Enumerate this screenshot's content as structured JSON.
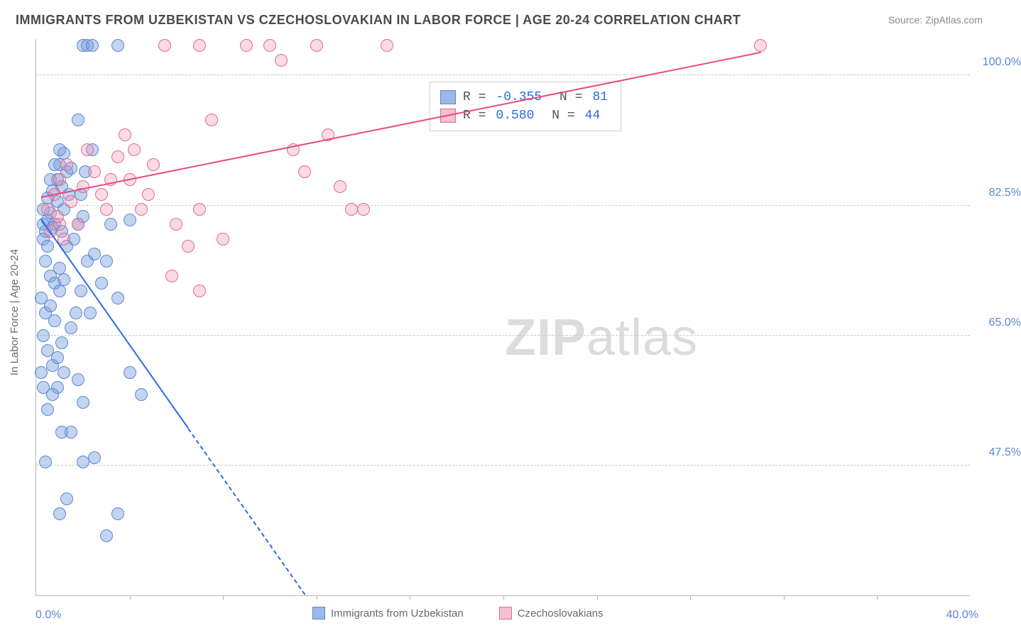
{
  "title": "IMMIGRANTS FROM UZBEKISTAN VS CZECHOSLOVAKIAN IN LABOR FORCE | AGE 20-24 CORRELATION CHART",
  "source": "Source: ZipAtlas.com",
  "y_axis_title": "In Labor Force | Age 20-24",
  "x_axis": {
    "min": 0.0,
    "max": 40.0,
    "label_min": "0.0%",
    "label_max": "40.0%",
    "tick_positions": [
      4,
      8,
      12,
      16,
      20,
      24,
      28,
      32,
      36
    ]
  },
  "y_axis": {
    "min": 30.0,
    "max": 105.0,
    "gridlines": [
      {
        "value": 100.0,
        "label": "100.0%"
      },
      {
        "value": 82.5,
        "label": "82.5%"
      },
      {
        "value": 65.0,
        "label": "65.0%"
      },
      {
        "value": 47.5,
        "label": "47.5%"
      }
    ]
  },
  "series": [
    {
      "name": "Immigrants from Uzbekistan",
      "swatch_fill": "#9cb8e8",
      "swatch_border": "#5b86d6",
      "point_fill": "rgba(120,160,220,0.45)",
      "point_border": "#5b86d6",
      "point_radius": 9,
      "R": "-0.355",
      "N": "81",
      "trend": {
        "x1": 0.2,
        "y1": 80.5,
        "x2": 11.5,
        "y2": 30.0,
        "solid_until_x": 6.5,
        "color": "#2b6be4",
        "width": 2.5
      },
      "points": [
        {
          "x": 0.3,
          "y": 80
        },
        {
          "x": 0.5,
          "y": 80.5
        },
        {
          "x": 0.4,
          "y": 79
        },
        {
          "x": 0.6,
          "y": 81.5
        },
        {
          "x": 0.8,
          "y": 80
        },
        {
          "x": 0.3,
          "y": 78
        },
        {
          "x": 0.5,
          "y": 77
        },
        {
          "x": 0.7,
          "y": 79.5
        },
        {
          "x": 0.9,
          "y": 83
        },
        {
          "x": 1.1,
          "y": 85
        },
        {
          "x": 1.3,
          "y": 87
        },
        {
          "x": 1.0,
          "y": 88
        },
        {
          "x": 1.2,
          "y": 89.5
        },
        {
          "x": 1.5,
          "y": 87.5
        },
        {
          "x": 1.8,
          "y": 94
        },
        {
          "x": 2.0,
          "y": 104
        },
        {
          "x": 2.2,
          "y": 104
        },
        {
          "x": 2.4,
          "y": 104
        },
        {
          "x": 0.4,
          "y": 75
        },
        {
          "x": 0.6,
          "y": 73
        },
        {
          "x": 0.8,
          "y": 72
        },
        {
          "x": 1.0,
          "y": 74
        },
        {
          "x": 0.3,
          "y": 82
        },
        {
          "x": 0.5,
          "y": 83.5
        },
        {
          "x": 0.7,
          "y": 84.5
        },
        {
          "x": 0.9,
          "y": 86
        },
        {
          "x": 0.2,
          "y": 70
        },
        {
          "x": 0.4,
          "y": 68
        },
        {
          "x": 0.6,
          "y": 69
        },
        {
          "x": 0.8,
          "y": 67
        },
        {
          "x": 1.0,
          "y": 71
        },
        {
          "x": 1.2,
          "y": 72.5
        },
        {
          "x": 0.3,
          "y": 65
        },
        {
          "x": 0.5,
          "y": 63
        },
        {
          "x": 0.7,
          "y": 61
        },
        {
          "x": 0.9,
          "y": 58
        },
        {
          "x": 1.2,
          "y": 60
        },
        {
          "x": 1.1,
          "y": 52
        },
        {
          "x": 1.5,
          "y": 52
        },
        {
          "x": 1.8,
          "y": 59
        },
        {
          "x": 2.0,
          "y": 56
        },
        {
          "x": 2.2,
          "y": 75
        },
        {
          "x": 2.5,
          "y": 76
        },
        {
          "x": 3.0,
          "y": 75
        },
        {
          "x": 3.5,
          "y": 70
        },
        {
          "x": 4.0,
          "y": 60
        },
        {
          "x": 4.5,
          "y": 57
        },
        {
          "x": 2.3,
          "y": 68
        },
        {
          "x": 2.8,
          "y": 72
        },
        {
          "x": 3.2,
          "y": 80
        },
        {
          "x": 3.5,
          "y": 104
        },
        {
          "x": 4.0,
          "y": 80.5
        },
        {
          "x": 1.6,
          "y": 78
        },
        {
          "x": 1.9,
          "y": 84
        },
        {
          "x": 2.1,
          "y": 87
        },
        {
          "x": 2.4,
          "y": 90
        },
        {
          "x": 0.4,
          "y": 48
        },
        {
          "x": 2.0,
          "y": 48
        },
        {
          "x": 2.5,
          "y": 48.5
        },
        {
          "x": 3.5,
          "y": 41
        },
        {
          "x": 1.0,
          "y": 41
        },
        {
          "x": 1.3,
          "y": 43
        },
        {
          "x": 3.0,
          "y": 38
        },
        {
          "x": 1.5,
          "y": 66
        },
        {
          "x": 1.7,
          "y": 68
        },
        {
          "x": 1.9,
          "y": 71
        },
        {
          "x": 1.8,
          "y": 80
        },
        {
          "x": 2.0,
          "y": 81
        },
        {
          "x": 1.2,
          "y": 82
        },
        {
          "x": 1.4,
          "y": 84
        },
        {
          "x": 0.6,
          "y": 86
        },
        {
          "x": 0.8,
          "y": 88
        },
        {
          "x": 1.0,
          "y": 90
        },
        {
          "x": 1.1,
          "y": 79
        },
        {
          "x": 1.3,
          "y": 77
        },
        {
          "x": 0.5,
          "y": 55
        },
        {
          "x": 0.7,
          "y": 57
        },
        {
          "x": 0.9,
          "y": 62
        },
        {
          "x": 1.1,
          "y": 64
        },
        {
          "x": 0.2,
          "y": 60
        },
        {
          "x": 0.3,
          "y": 58
        }
      ]
    },
    {
      "name": "Czechoslovakians",
      "swatch_fill": "#f5c0cf",
      "swatch_border": "#e06a8e",
      "point_fill": "rgba(240,150,180,0.35)",
      "point_border": "#e06a8e",
      "point_radius": 9,
      "R": "0.580",
      "N": "44",
      "trend": {
        "x1": 0.2,
        "y1": 83.5,
        "x2": 31.0,
        "y2": 103.0,
        "solid_until_x": 31.0,
        "color": "#e84a7f",
        "width": 2.5
      },
      "points": [
        {
          "x": 0.5,
          "y": 82
        },
        {
          "x": 0.8,
          "y": 84
        },
        {
          "x": 1.0,
          "y": 86
        },
        {
          "x": 1.3,
          "y": 88
        },
        {
          "x": 1.5,
          "y": 83
        },
        {
          "x": 1.8,
          "y": 80
        },
        {
          "x": 2.0,
          "y": 85
        },
        {
          "x": 2.5,
          "y": 87
        },
        {
          "x": 3.0,
          "y": 82
        },
        {
          "x": 3.5,
          "y": 89
        },
        {
          "x": 4.0,
          "y": 86
        },
        {
          "x": 4.5,
          "y": 82
        },
        {
          "x": 5.0,
          "y": 88
        },
        {
          "x": 5.5,
          "y": 104
        },
        {
          "x": 6.0,
          "y": 80
        },
        {
          "x": 6.5,
          "y": 77
        },
        {
          "x": 7.0,
          "y": 104
        },
        {
          "x": 7.0,
          "y": 82
        },
        {
          "x": 7.5,
          "y": 94
        },
        {
          "x": 8.0,
          "y": 78
        },
        {
          "x": 7.0,
          "y": 71
        },
        {
          "x": 9.0,
          "y": 104
        },
        {
          "x": 10.0,
          "y": 104
        },
        {
          "x": 10.5,
          "y": 102
        },
        {
          "x": 11.0,
          "y": 90
        },
        {
          "x": 11.5,
          "y": 87
        },
        {
          "x": 12.0,
          "y": 104
        },
        {
          "x": 12.5,
          "y": 92
        },
        {
          "x": 13.0,
          "y": 85
        },
        {
          "x": 13.5,
          "y": 82
        },
        {
          "x": 14.0,
          "y": 82
        },
        {
          "x": 15.0,
          "y": 104
        },
        {
          "x": 5.8,
          "y": 73
        },
        {
          "x": 2.2,
          "y": 90
        },
        {
          "x": 3.8,
          "y": 92
        },
        {
          "x": 31.0,
          "y": 104
        },
        {
          "x": 1.0,
          "y": 80
        },
        {
          "x": 1.2,
          "y": 78
        },
        {
          "x": 0.6,
          "y": 79
        },
        {
          "x": 0.9,
          "y": 81
        },
        {
          "x": 2.8,
          "y": 84
        },
        {
          "x": 3.2,
          "y": 86
        },
        {
          "x": 4.2,
          "y": 90
        },
        {
          "x": 4.8,
          "y": 84
        }
      ]
    }
  ],
  "watermark": {
    "pre": "ZIP",
    "post": "atlas"
  },
  "colors": {
    "title": "#4a4a4a",
    "axis": "#b8b8b8",
    "grid": "#c9c9c9",
    "tick_label": "#5b86d6",
    "legend_text": "#6a6a6a"
  }
}
